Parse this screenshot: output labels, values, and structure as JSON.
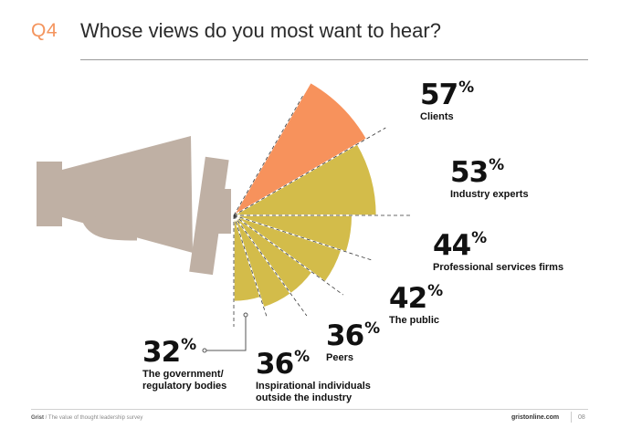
{
  "header": {
    "question_number": "Q4",
    "title": "Whose views do you most want to hear?"
  },
  "colors": {
    "accent": "#f4955e",
    "highlight_slice": "#f7925c",
    "slice": "#d3bc4a",
    "megaphone": "#bfb0a4"
  },
  "icons": {
    "megaphone": "megaphone-icon"
  },
  "chart_data": {
    "type": "radial-bar",
    "title": "Whose views do you most want to hear?",
    "categories": [
      "Clients",
      "Industry experts",
      "Professional services firms",
      "The public",
      "Peers",
      "Inspirational individuals outside the industry",
      "The government/ regulatory bodies"
    ],
    "values": [
      57,
      53,
      44,
      42,
      36,
      36,
      32
    ],
    "unit": "%",
    "labels": [
      {
        "value": "57",
        "unit": "%",
        "lines": [
          "Clients"
        ]
      },
      {
        "value": "53",
        "unit": "%",
        "lines": [
          "Industry experts"
        ]
      },
      {
        "value": "44",
        "unit": "%",
        "lines": [
          "Professional services firms"
        ]
      },
      {
        "value": "42",
        "unit": "%",
        "lines": [
          "The public"
        ]
      },
      {
        "value": "36",
        "unit": "%",
        "lines": [
          "Peers"
        ]
      },
      {
        "value": "36",
        "unit": "%",
        "lines": [
          "Inspirational individuals",
          "outside the industry"
        ]
      },
      {
        "value": "32",
        "unit": "%",
        "lines": [
          "The government/",
          "regulatory bodies"
        ]
      }
    ]
  },
  "footer": {
    "brand": "Grist",
    "report": "The value of thought leadership survey",
    "url": "gristonline.com",
    "page": "08"
  }
}
